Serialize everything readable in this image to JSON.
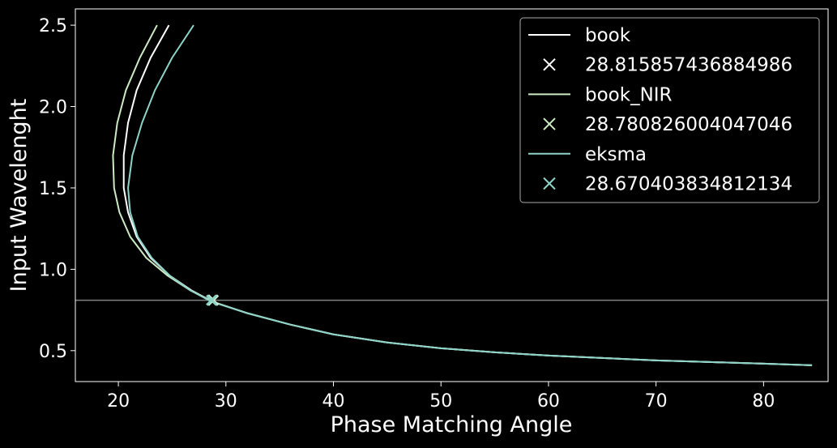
{
  "chart_data": {
    "type": "line",
    "xlabel": "Phase Matching Angle",
    "ylabel": "Input Wavelenght",
    "xlim": [
      16,
      86
    ],
    "ylim": [
      0.31,
      2.6
    ],
    "xticks": [
      20,
      30,
      40,
      50,
      60,
      70,
      80
    ],
    "yticks": [
      0.5,
      1.0,
      1.5,
      2.0,
      2.5
    ],
    "xtick_labels": [
      "20",
      "30",
      "40",
      "50",
      "60",
      "70",
      "80"
    ],
    "ytick_labels": [
      "0.5",
      "1.0",
      "1.5",
      "2.0",
      "2.5"
    ],
    "hline": 0.81,
    "hline_color": "#808080",
    "legend_position": "top-right",
    "grid": false,
    "series": [
      {
        "name": "book",
        "color": "#ffffff",
        "points": [
          [
            24.7,
            2.5
          ],
          [
            23.0,
            2.3
          ],
          [
            21.7,
            2.1
          ],
          [
            20.9,
            1.9
          ],
          [
            20.5,
            1.7
          ],
          [
            20.5,
            1.5
          ],
          [
            20.9,
            1.35
          ],
          [
            21.7,
            1.2
          ],
          [
            23.0,
            1.07
          ],
          [
            24.8,
            0.96
          ],
          [
            26.8,
            0.87
          ],
          [
            28.8,
            0.8
          ],
          [
            32,
            0.73
          ],
          [
            36,
            0.66
          ],
          [
            40,
            0.6
          ],
          [
            45,
            0.55
          ],
          [
            50,
            0.515
          ],
          [
            55,
            0.49
          ],
          [
            60,
            0.47
          ],
          [
            65,
            0.455
          ],
          [
            70,
            0.44
          ],
          [
            75,
            0.43
          ],
          [
            80,
            0.42
          ],
          [
            84.5,
            0.41
          ]
        ]
      },
      {
        "name": "book_NIR",
        "color": "#ccebc5",
        "points": [
          [
            23.6,
            2.5
          ],
          [
            22.0,
            2.3
          ],
          [
            20.7,
            2.1
          ],
          [
            19.9,
            1.9
          ],
          [
            19.5,
            1.7
          ],
          [
            19.6,
            1.5
          ],
          [
            20.1,
            1.35
          ],
          [
            21.1,
            1.2
          ],
          [
            22.6,
            1.07
          ],
          [
            24.6,
            0.96
          ],
          [
            26.7,
            0.87
          ],
          [
            28.8,
            0.8
          ],
          [
            32,
            0.73
          ],
          [
            36,
            0.66
          ],
          [
            40,
            0.6
          ],
          [
            45,
            0.55
          ],
          [
            50,
            0.515
          ],
          [
            55,
            0.49
          ],
          [
            60,
            0.47
          ],
          [
            65,
            0.455
          ],
          [
            70,
            0.44
          ],
          [
            75,
            0.43
          ],
          [
            80,
            0.42
          ],
          [
            84.5,
            0.41
          ]
        ]
      },
      {
        "name": "eksma",
        "color": "#8dd3c7",
        "points": [
          [
            27.0,
            2.5
          ],
          [
            25.0,
            2.3
          ],
          [
            23.4,
            2.1
          ],
          [
            22.2,
            1.9
          ],
          [
            21.3,
            1.7
          ],
          [
            20.9,
            1.5
          ],
          [
            21.1,
            1.35
          ],
          [
            21.8,
            1.2
          ],
          [
            23.1,
            1.07
          ],
          [
            24.8,
            0.96
          ],
          [
            26.7,
            0.87
          ],
          [
            28.7,
            0.8
          ],
          [
            32,
            0.73
          ],
          [
            36,
            0.66
          ],
          [
            40,
            0.6
          ],
          [
            45,
            0.55
          ],
          [
            50,
            0.515
          ],
          [
            55,
            0.49
          ],
          [
            60,
            0.47
          ],
          [
            65,
            0.455
          ],
          [
            70,
            0.44
          ],
          [
            75,
            0.43
          ],
          [
            80,
            0.42
          ],
          [
            84.5,
            0.41
          ]
        ]
      }
    ],
    "markers": [
      {
        "label": "28.815857436884986",
        "x": 28.815857436884986,
        "y": 0.81,
        "color": "#ffffff"
      },
      {
        "label": "28.780826004047046",
        "x": 28.780826004047046,
        "y": 0.81,
        "color": "#ccebc5"
      },
      {
        "label": "28.670403834812134",
        "x": 28.670403834812134,
        "y": 0.81,
        "color": "#8dd3c7"
      }
    ],
    "legend": [
      {
        "kind": "line",
        "label": "book",
        "color": "#ffffff"
      },
      {
        "kind": "marker",
        "label": "28.815857436884986",
        "color": "#ffffff"
      },
      {
        "kind": "line",
        "label": "book_NIR",
        "color": "#ccebc5"
      },
      {
        "kind": "marker",
        "label": "28.780826004047046",
        "color": "#ccebc5"
      },
      {
        "kind": "line",
        "label": "eksma",
        "color": "#8dd3c7"
      },
      {
        "kind": "marker",
        "label": "28.670403834812134",
        "color": "#8dd3c7"
      }
    ]
  }
}
